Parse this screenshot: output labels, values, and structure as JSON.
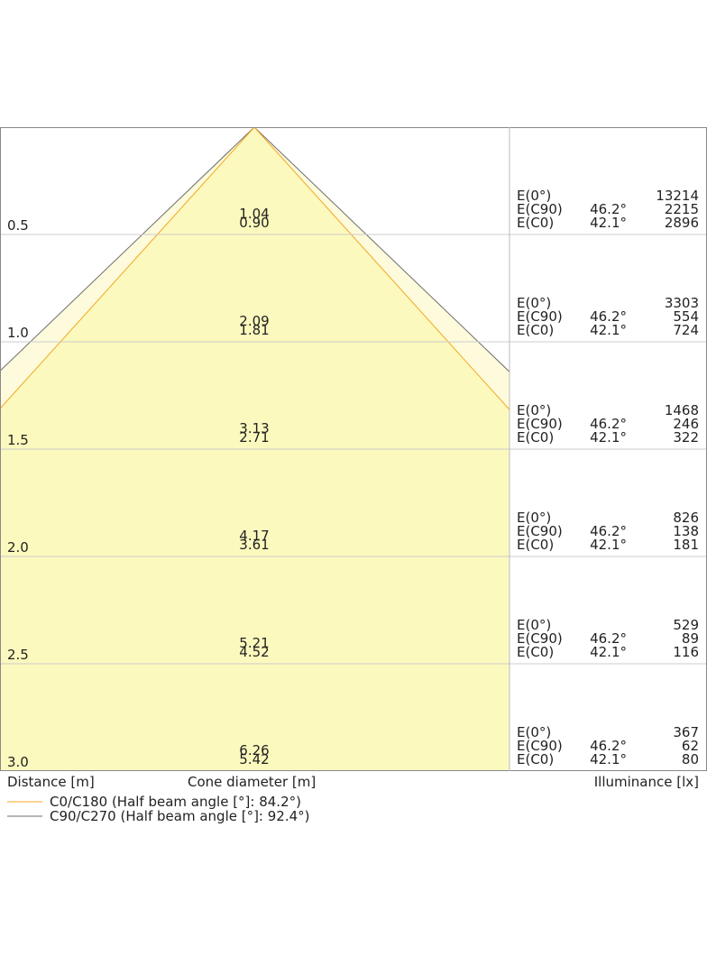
{
  "labels": {
    "distance": "Distance [m]",
    "cone": "Cone diameter [m]",
    "illuminance": "Illuminance [lx]",
    "e0": "E(0°)",
    "ec90": "E(C90)",
    "ec0": "E(C0)",
    "angle_c90": "46.2°",
    "angle_c0": "42.1°"
  },
  "rows": [
    {
      "distance": "0.5",
      "d_c90": "1.04",
      "d_c0": "0.90",
      "e0": "13214",
      "ec90": "2215",
      "ec0": "2896"
    },
    {
      "distance": "1.0",
      "d_c90": "2.09",
      "d_c0": "1.81",
      "e0": "3303",
      "ec90": "554",
      "ec0": "724"
    },
    {
      "distance": "1.5",
      "d_c90": "3.13",
      "d_c0": "2.71",
      "e0": "1468",
      "ec90": "246",
      "ec0": "322"
    },
    {
      "distance": "2.0",
      "d_c90": "4.17",
      "d_c0": "3.61",
      "e0": "826",
      "ec90": "138",
      "ec0": "181"
    },
    {
      "distance": "2.5",
      "d_c90": "5.21",
      "d_c0": "4.52",
      "e0": "529",
      "ec90": "89",
      "ec0": "116"
    },
    {
      "distance": "3.0",
      "d_c90": "6.26",
      "d_c0": "5.42",
      "e0": "367",
      "ec90": "62",
      "ec0": "80"
    }
  ],
  "legend": [
    {
      "name": "C0/C180 (Half beam angle [°]: 84.2°)",
      "color": "#f5a623"
    },
    {
      "name": "C90/C270 (Half beam angle [°]: 92.4°)",
      "color": "#6e6e6e"
    }
  ]
}
